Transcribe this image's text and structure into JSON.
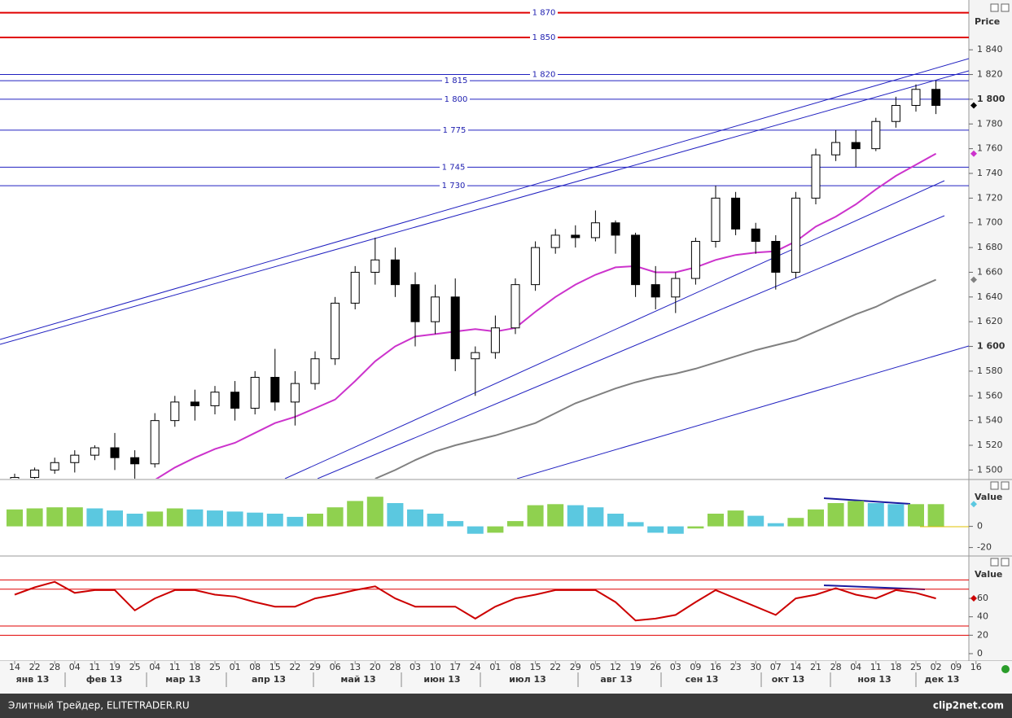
{
  "chart_data": [
    {
      "type": "candlestick",
      "y_label": "Price",
      "categories": [
        "14",
        "22",
        "28",
        "04",
        "11",
        "19",
        "25",
        "04",
        "11",
        "18",
        "25",
        "01",
        "08",
        "15",
        "22",
        "29",
        "06",
        "13",
        "20",
        "28",
        "03",
        "10",
        "17",
        "24",
        "01",
        "08",
        "15",
        "22",
        "29",
        "05",
        "12",
        "19",
        "26",
        "03",
        "09",
        "16",
        "23",
        "30",
        "07",
        "14",
        "21",
        "28",
        "04",
        "11",
        "18",
        "25",
        "02",
        "09",
        "16"
      ],
      "months": [
        "янв 13",
        "фев 13",
        "мар 13",
        "апр 13",
        "май 13",
        "июн 13",
        "июл 13",
        "авг 13",
        "сен 13",
        "окт 13",
        "ноя 13",
        "дек 13"
      ],
      "open": [
        1490,
        1494,
        1500,
        1506,
        1512,
        1518,
        1510,
        1505,
        1540,
        1555,
        1552,
        1563,
        1550,
        1575,
        1555,
        1570,
        1590,
        1635,
        1660,
        1670,
        1650,
        1620,
        1640,
        1590,
        1595,
        1615,
        1650,
        1680,
        1690,
        1688,
        1700,
        1690,
        1650,
        1640,
        1655,
        1685,
        1720,
        1695,
        1685,
        1660,
        1720,
        1755,
        1765,
        1760,
        1782,
        1795,
        1808,
        null,
        null
      ],
      "high": [
        1497,
        1502,
        1510,
        1516,
        1520,
        1530,
        1516,
        1546,
        1560,
        1565,
        1568,
        1572,
        1580,
        1598,
        1580,
        1596,
        1640,
        1665,
        1688,
        1680,
        1660,
        1650,
        1655,
        1600,
        1625,
        1655,
        1685,
        1695,
        1698,
        1710,
        1702,
        1692,
        1665,
        1660,
        1688,
        1730,
        1725,
        1700,
        1690,
        1725,
        1760,
        1775,
        1775,
        1785,
        1802,
        1812,
        1815,
        null,
        null
      ],
      "low": [
        1485,
        1490,
        1497,
        1498,
        1508,
        1500,
        1490,
        1502,
        1535,
        1540,
        1545,
        1540,
        1545,
        1548,
        1536,
        1565,
        1585,
        1630,
        1650,
        1640,
        1600,
        1610,
        1580,
        1560,
        1590,
        1610,
        1645,
        1675,
        1680,
        1685,
        1675,
        1640,
        1630,
        1627,
        1650,
        1680,
        1690,
        1675,
        1646,
        1655,
        1715,
        1750,
        1745,
        1758,
        1777,
        1790,
        1788,
        null,
        null
      ],
      "close": [
        1494,
        1500,
        1506,
        1512,
        1518,
        1510,
        1505,
        1540,
        1555,
        1552,
        1563,
        1550,
        1575,
        1555,
        1570,
        1590,
        1635,
        1660,
        1670,
        1650,
        1620,
        1640,
        1590,
        1595,
        1615,
        1650,
        1680,
        1690,
        1688,
        1700,
        1690,
        1650,
        1640,
        1655,
        1685,
        1720,
        1695,
        1685,
        1660,
        1720,
        1755,
        1765,
        1760,
        1782,
        1795,
        1808,
        1795,
        null,
        null
      ],
      "color_up": "#ffffff",
      "color_down": "#000000",
      "moving_averages": [
        {
          "color": "#cc33cc",
          "values": [
            null,
            null,
            null,
            null,
            null,
            null,
            null,
            1492,
            1502,
            1510,
            1517,
            1522,
            1530,
            1538,
            1543,
            1550,
            1557,
            1572,
            1588,
            1600,
            1608,
            1610,
            1612,
            1614,
            1612,
            1615,
            1628,
            1640,
            1650,
            1658,
            1664,
            1665,
            1660,
            1660,
            1664,
            1670,
            1674,
            1676,
            1677,
            1685,
            1697,
            1705,
            1715,
            1727,
            1738,
            1747,
            1756,
            null,
            null
          ]
        },
        {
          "color": "#808080",
          "values": [
            null,
            null,
            null,
            null,
            null,
            null,
            null,
            null,
            null,
            null,
            null,
            null,
            null,
            null,
            null,
            null,
            null,
            null,
            1493,
            1500,
            1508,
            1515,
            1520,
            1524,
            1528,
            1533,
            1538,
            1546,
            1554,
            1560,
            1566,
            1571,
            1575,
            1578,
            1582,
            1587,
            1592,
            1597,
            1601,
            1605,
            1612,
            1619,
            1626,
            1632,
            1640,
            1647,
            1654,
            null,
            null
          ]
        }
      ],
      "levels": [
        {
          "value": 1870,
          "label": "1 870",
          "color": "#e00000"
        },
        {
          "value": 1850,
          "label": "1 850",
          "color": "#e00000"
        },
        {
          "value": 1820,
          "label": "1 820",
          "color": "#2020c0"
        },
        {
          "value": 1815,
          "label": "1 815",
          "color": "#2020c0"
        },
        {
          "value": 1800,
          "label": "1 800",
          "color": "#2020c0"
        },
        {
          "value": 1775,
          "label": "1 775",
          "color": "#2020c0"
        },
        {
          "value": 1745,
          "label": "1 745",
          "color": "#2020c0"
        },
        {
          "value": 1730,
          "label": "1 730",
          "color": "#2020c0"
        }
      ],
      "ylim": [
        1493,
        1877
      ],
      "yticks": [
        {
          "value": 1500,
          "label": "1 500"
        },
        {
          "value": 1520,
          "label": "1 520"
        },
        {
          "value": 1540,
          "label": "1 540"
        },
        {
          "value": 1560,
          "label": "1 560"
        },
        {
          "value": 1580,
          "label": "1 580"
        },
        {
          "value": 1600,
          "label": "1 600"
        },
        {
          "value": 1620,
          "label": "1 620"
        },
        {
          "value": 1640,
          "label": "1 640"
        },
        {
          "value": 1660,
          "label": "1 660"
        },
        {
          "value": 1680,
          "label": "1 680"
        },
        {
          "value": 1700,
          "label": "1 700"
        },
        {
          "value": 1720,
          "label": "1 720"
        },
        {
          "value": 1740,
          "label": "1 740"
        },
        {
          "value": 1760,
          "label": "1 760"
        },
        {
          "value": 1780,
          "label": "1 780"
        },
        {
          "value": 1800,
          "label": "1 800"
        },
        {
          "value": 1820,
          "label": "1 820"
        },
        {
          "value": 1840,
          "label": "1 840"
        }
      ]
    },
    {
      "type": "bar",
      "y_label": "Value",
      "values": [
        16,
        17,
        18,
        18,
        17,
        15,
        12,
        14,
        17,
        16,
        15,
        14,
        13,
        12,
        9,
        12,
        18,
        24,
        28,
        22,
        16,
        12,
        5,
        -7,
        -6,
        5,
        20,
        21,
        20,
        18,
        12,
        4,
        -6,
        -7,
        -2,
        12,
        15,
        10,
        3,
        8,
        16,
        22,
        24,
        22,
        21,
        21,
        21,
        null,
        null
      ],
      "color": "#8fd14f",
      "color_falling": "#5bc8e0",
      "ylim": [
        -28,
        42
      ],
      "yticks": [
        0,
        -20
      ]
    },
    {
      "type": "line",
      "y_label": "Value",
      "values": [
        64,
        72,
        78,
        66,
        69,
        69,
        47,
        60,
        69,
        69,
        64,
        62,
        56,
        51,
        51,
        60,
        64,
        69,
        73,
        60,
        51,
        51,
        51,
        38,
        51,
        60,
        64,
        69,
        69,
        69,
        56,
        36,
        38,
        42,
        56,
        69,
        60,
        51,
        42,
        60,
        64,
        71,
        64,
        60,
        69,
        66,
        60,
        null,
        null
      ],
      "color": "#cc0000",
      "levels": [
        80,
        70,
        30,
        20
      ],
      "ylim": [
        -8,
        106
      ],
      "yticks": [
        0,
        20,
        40,
        60
      ]
    }
  ],
  "footer": {
    "left": "Элитный Трейдер, ELITETRADER.RU",
    "right": "clip2net.com"
  }
}
